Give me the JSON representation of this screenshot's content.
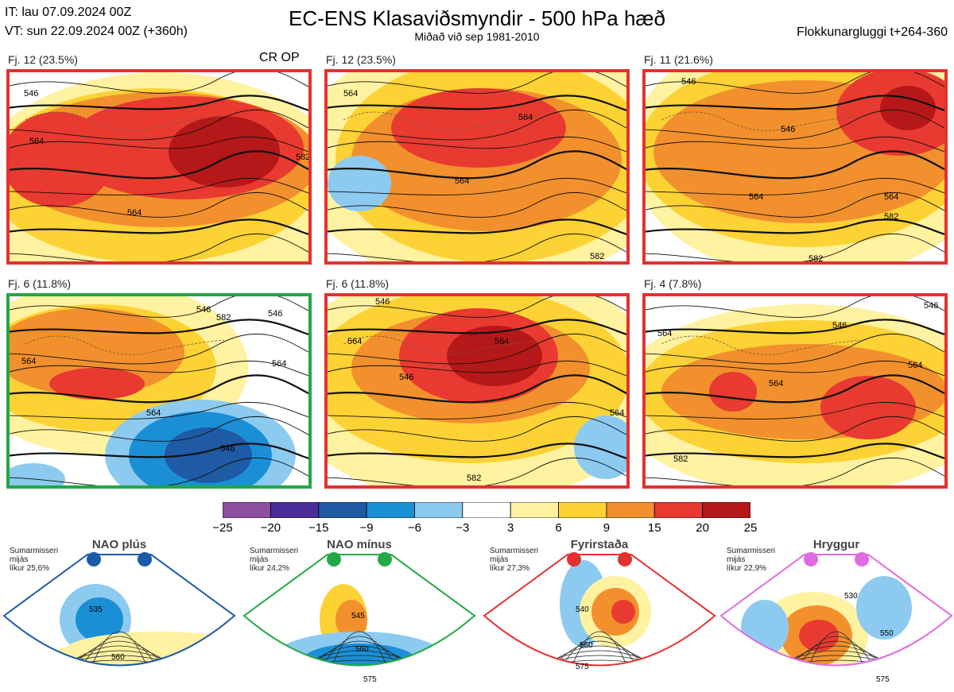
{
  "header": {
    "it_line": "IT: lau 07.09.2024 00Z",
    "vt_line": "VT: sun 22.09.2024 00Z  (+360h)",
    "title": "EC-ENS Klasaviðsmyndir - 500 hPa hæð",
    "subtitle": "Miðað við sep 1981-2010",
    "window": "Flokkunargluggi t+264-360"
  },
  "colors": {
    "red_border": "#e53030",
    "green_border": "#22a845",
    "blue_border": "#1a5aa8",
    "purple_border": "#8a2ba0"
  },
  "chart_data": {
    "type": "heatmap",
    "panels": [
      {
        "label": "Fj. 12 (23.5%)",
        "tag": "CR OP",
        "border": "red",
        "contour_labels": [
          "546",
          "564",
          "564",
          "582"
        ]
      },
      {
        "label": "Fj. 12 (23.5%)",
        "tag": "",
        "border": "red",
        "contour_labels": [
          "564",
          "564",
          "564",
          "582"
        ]
      },
      {
        "label": "Fj. 11 (21.6%)",
        "tag": "",
        "border": "red",
        "contour_labels": [
          "546",
          "546",
          "564",
          "564",
          "582",
          "582"
        ]
      },
      {
        "label": "Fj. 6 (11.8%)",
        "tag": "",
        "border": "green",
        "contour_labels": [
          "546",
          "546",
          "564",
          "564",
          "564",
          "546",
          "582"
        ]
      },
      {
        "label": "Fj. 6 (11.8%)",
        "tag": "",
        "border": "red",
        "contour_labels": [
          "546",
          "546",
          "564",
          "564",
          "564",
          "582"
        ]
      },
      {
        "label": "Fj. 4 (7.8%)",
        "tag": "",
        "border": "red",
        "contour_labels": [
          "546",
          "546",
          "564",
          "564",
          "564",
          "582"
        ]
      }
    ],
    "colorbar": {
      "ticks": [
        "−25",
        "−20",
        "−15",
        "−9",
        "−6",
        "−3",
        "3",
        "6",
        "9",
        "15",
        "20",
        "25"
      ],
      "colors": [
        "#8e4fa3",
        "#4b2e9a",
        "#1f5aa5",
        "#1b8fd6",
        "#8dcaf0",
        "#ffffff",
        "#fff2a0",
        "#fcd234",
        "#f2902d",
        "#e83a30",
        "#b51818"
      ]
    },
    "regimes": [
      {
        "name": "NAO plús",
        "note": [
          "Sumarmisseri",
          "mijás",
          "líkur 25,6%"
        ],
        "color": "#1a5aa8",
        "contour_labels": [
          "535",
          "560"
        ]
      },
      {
        "name": "NAO mínus",
        "note": [
          "Sumarmisseri",
          "mijás",
          "líkur 24,2%"
        ],
        "color": "#22a845",
        "contour_labels": [
          "545",
          "560",
          "575"
        ]
      },
      {
        "name": "Fyrirstaða",
        "note": [
          "Sumarmisseri",
          "mijás",
          "líkur 27,3%"
        ],
        "color": "#e53030",
        "contour_labels": [
          "540",
          "560",
          "575"
        ]
      },
      {
        "name": "Hryggur",
        "note": [
          "Sumarmisseri",
          "mijás",
          "líkur 22,9%"
        ],
        "color": "#e06ae0",
        "contour_labels": [
          "530",
          "550",
          "575"
        ]
      }
    ]
  }
}
